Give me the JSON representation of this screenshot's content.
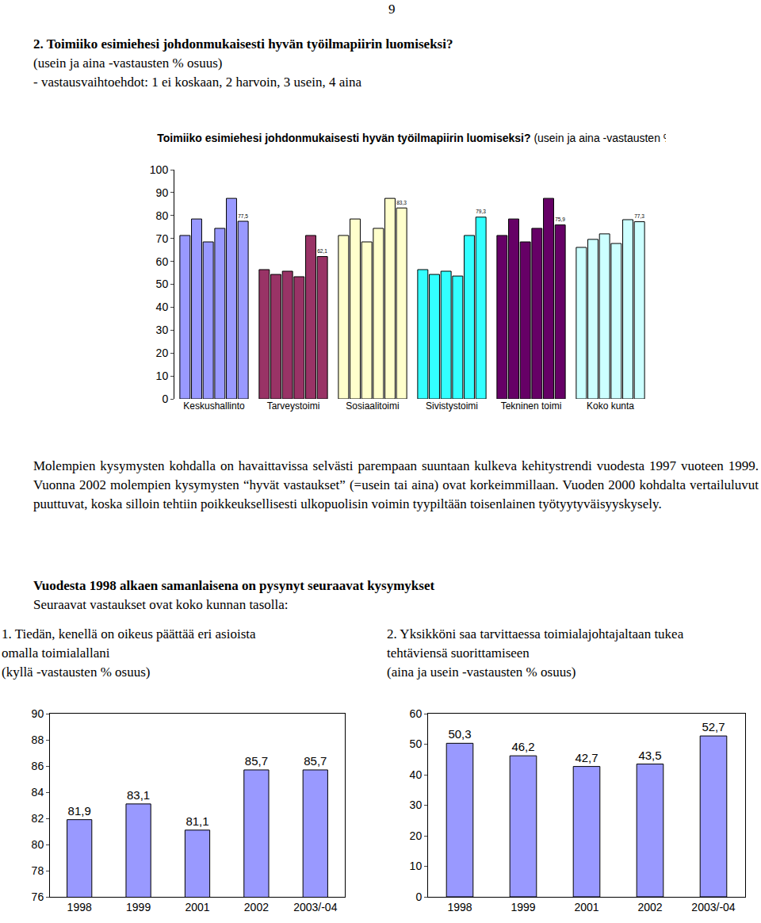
{
  "document": {
    "page_number": "9",
    "heading": [
      "2. Toimiiko esimiehesi johdonmukaisesti hyvän työilmapiirin luomiseksi?",
      "(usein ja aina -vastausten % osuus)",
      "- vastausvaihtoehdot: 1 ei koskaan, 2 harvoin, 3 usein, 4 aina"
    ],
    "paragraph": "Molempien kysymysten kohdalla on havaittavissa selvästi parempaan suuntaan kulkeva kehitystrendi vuodesta 1997 vuoteen 1999. Vuonna 2002 molempien kysymysten “hyvät vastaukset” (=usein tai aina) ovat korkeimmillaan. Vuoden 2000 kohdalta vertailuluvut puuttuvat, koska silloin tehtiin poikkeuksellisesti ulkopuolisin voimin tyypiltään toisenlainen työtyytyväisyyskysely.",
    "section_heading": "Vuodesta 1998 alkaen samanlaisena on pysynyt seuraavat kysymykset",
    "section_text": "Seuraavat vastaukset ovat koko kunnan tasolla:",
    "question_1": [
      "1. Tiedän, kenellä on oikeus päättää eri asioista",
      "omalla toimialallani",
      "(kyllä -vastausten % osuus)"
    ],
    "question_2": [
      "2. Yksikköni saa tarvittaessa toimialajohtajaltaan tukea",
      "tehtäviensä suorittamiseen",
      "(aina ja usein -vastausten % osuus)"
    ]
  },
  "chart_data": [
    {
      "type": "bar",
      "title": "Toimiiko esimiehesi johdonmukaisesti hyvän työilmapiirin luomiseksi?",
      "subtitle": "(usein ja aina -vastausten %-osuus)",
      "categories": [
        "Keskushallinto",
        "Tarveystoimi",
        "Sosiaalitoimi",
        "Sivistystoimi",
        "Tekninen toimi",
        "Koko kunta"
      ],
      "colors": [
        "#9999ff",
        "#993366",
        "#ffffcc",
        "#33ffff",
        "#660066",
        "#ccffff"
      ],
      "series": [
        {
          "values": [
            71.3,
            56.4,
            71.3,
            56.4,
            71.3,
            66.1
          ]
        },
        {
          "values": [
            78.5,
            54.3,
            78.5,
            54.3,
            78.5,
            69.6
          ]
        },
        {
          "values": [
            68.5,
            55.7,
            68.5,
            55.7,
            68.5,
            72.0
          ]
        },
        {
          "values": [
            74.4,
            53.3,
            74.4,
            53.6,
            74.4,
            67.8
          ]
        },
        {
          "values": [
            87.5,
            71.3,
            87.5,
            71.3,
            87.5,
            78.2
          ]
        },
        {
          "values": [
            77.5,
            62.1,
            83.3,
            79.3,
            75.9,
            77.3
          ],
          "value_labels": [
            "77,5",
            "62,1",
            "83,3",
            "79,3",
            "75,9",
            "77,3"
          ]
        }
      ],
      "ylim": [
        0,
        100
      ],
      "yticks": [
        0,
        10,
        20,
        30,
        40,
        50,
        60,
        70,
        80,
        90,
        100
      ],
      "grid": false,
      "data_labels": true
    },
    {
      "type": "bar",
      "categories": [
        "1998",
        "1999",
        "2001",
        "2002",
        "2003/-04"
      ],
      "values": [
        81.9,
        83.1,
        81.1,
        85.7,
        85.7
      ],
      "value_labels": [
        "81,9",
        "83,1",
        "81,1",
        "85,7",
        "85,7"
      ],
      "color": "#9999ff",
      "ylim": [
        76,
        90
      ],
      "yticks": [
        76,
        78,
        80,
        82,
        84,
        86,
        88,
        90
      ],
      "grid": false,
      "data_labels": true
    },
    {
      "type": "bar",
      "categories": [
        "1998",
        "1999",
        "2001",
        "2002",
        "2003/-04"
      ],
      "values": [
        50.3,
        46.2,
        42.7,
        43.5,
        52.7
      ],
      "value_labels": [
        "50,3",
        "46,2",
        "42,7",
        "43,5",
        "52,7"
      ],
      "color": "#9999ff",
      "ylim": [
        0,
        60
      ],
      "yticks": [
        0,
        10,
        20,
        30,
        40,
        50,
        60
      ],
      "grid": false,
      "data_labels": true
    }
  ]
}
